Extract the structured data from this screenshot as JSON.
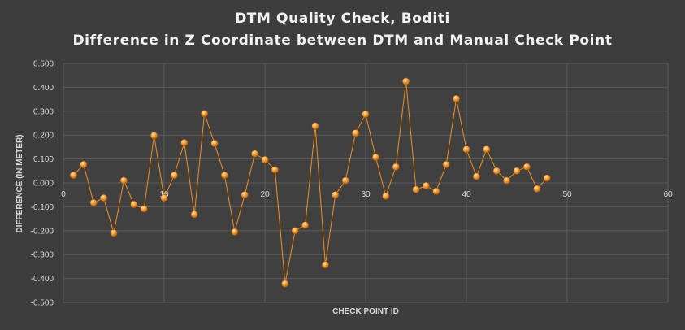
{
  "chart_data": {
    "type": "scatter",
    "title": "DTM  Quality  Check,  Boditi",
    "subtitle": "Difference  in  Z Coordinate  between  DTM  and  Manual  Check  Point",
    "xlabel": "CHECK POINT ID",
    "ylabel": "DIFFERENCE (IN METER)",
    "xlim": [
      0,
      60
    ],
    "ylim": [
      -0.5,
      0.5
    ],
    "x_ticks": [
      "0",
      "10",
      "20",
      "30",
      "40",
      "50",
      "60"
    ],
    "y_ticks": [
      "0.500",
      "0.400",
      "0.300",
      "0.200",
      "0.100",
      "0.000",
      "-0.100",
      "-0.200",
      "-0.300",
      "-0.400",
      "-0.500"
    ],
    "grid": true,
    "legend": "none",
    "series": [
      {
        "color": "#f28e1c",
        "x": [
          1,
          2,
          3,
          4,
          5,
          6,
          7,
          8,
          9,
          10,
          11,
          12,
          13,
          14,
          15,
          16,
          17,
          18,
          19,
          20,
          21,
          22,
          23,
          24,
          25,
          26,
          27,
          28,
          29,
          30,
          31,
          32,
          33,
          34,
          35,
          36,
          37,
          38,
          39,
          40,
          41,
          42,
          43,
          44,
          45,
          46,
          47,
          48
        ],
        "y": [
          0.032,
          0.077,
          -0.083,
          -0.063,
          -0.21,
          0.01,
          -0.09,
          -0.108,
          0.198,
          -0.063,
          0.032,
          0.168,
          -0.132,
          0.29,
          0.165,
          0.032,
          -0.205,
          -0.05,
          0.122,
          0.097,
          0.055,
          -0.422,
          -0.2,
          -0.177,
          0.238,
          -0.343,
          -0.05,
          0.01,
          0.208,
          0.287,
          0.107,
          -0.055,
          0.067,
          0.425,
          -0.028,
          -0.012,
          -0.035,
          0.077,
          0.352,
          0.14,
          0.027,
          0.14,
          0.05,
          0.01,
          0.05,
          0.067,
          -0.025,
          0.02
        ]
      }
    ]
  }
}
